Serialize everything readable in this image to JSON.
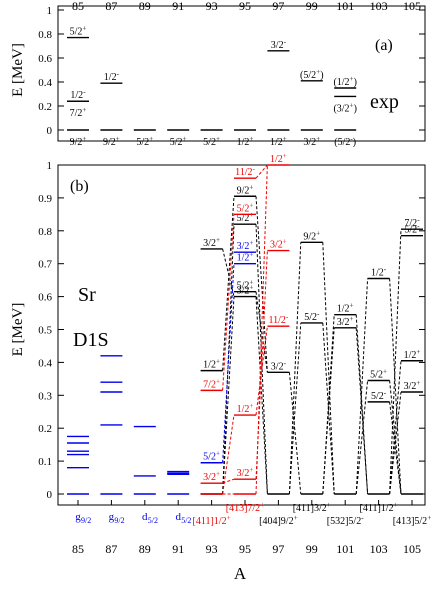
{
  "chart_data": {
    "type": "level-scheme",
    "xlabel": "A",
    "a_values": [
      85,
      87,
      89,
      91,
      93,
      95,
      97,
      99,
      101,
      103,
      105
    ],
    "ylabel": "E [MeV]",
    "panels": [
      {
        "id": "a",
        "label": "(a)",
        "title": "exp",
        "ylim": [
          0,
          1
        ],
        "yticks": [
          "0",
          "0.2",
          "0.4",
          "0.6",
          "0.8",
          "1"
        ],
        "top_axis_labels": [
          "85",
          "87",
          "89",
          "91",
          "93",
          "95",
          "97",
          "99",
          "101",
          "103",
          "105"
        ],
        "levels": [
          {
            "A": 85,
            "E": 0.0,
            "label": "9/2",
            "sup": "+",
            "label_pos": "below"
          },
          {
            "A": 85,
            "E": 0.24,
            "label": "7/2",
            "sup": "+",
            "label_pos": "below"
          },
          {
            "A": 85,
            "E": 0.24,
            "label": "1/2",
            "sup": "-",
            "label_pos": "above"
          },
          {
            "A": 85,
            "E": 0.77,
            "label": "5/2",
            "sup": "+",
            "label_pos": "above"
          },
          {
            "A": 87,
            "E": 0.0,
            "label": "9/2",
            "sup": "+",
            "label_pos": "below"
          },
          {
            "A": 87,
            "E": 0.39,
            "label": "1/2",
            "sup": "-",
            "label_pos": "above"
          },
          {
            "A": 89,
            "E": 0.0,
            "label": "5/2",
            "sup": "+",
            "label_pos": "below"
          },
          {
            "A": 91,
            "E": 0.0,
            "label": "5/2",
            "sup": "+",
            "label_pos": "below"
          },
          {
            "A": 93,
            "E": 0.0,
            "label": "5/2",
            "sup": "+",
            "label_pos": "below"
          },
          {
            "A": 95,
            "E": 0.0,
            "label": "1/2",
            "sup": "+",
            "label_pos": "below"
          },
          {
            "A": 97,
            "E": 0.0,
            "label": "1/2",
            "sup": "+",
            "label_pos": "below"
          },
          {
            "A": 97,
            "E": 0.66,
            "label": "3/2",
            "sup": "-",
            "label_pos": "above"
          },
          {
            "A": 99,
            "E": 0.0,
            "label": "3/2",
            "sup": "+",
            "label_pos": "below"
          },
          {
            "A": 99,
            "E": 0.41,
            "label": "(5/2",
            "sup": "+",
            "close": ")",
            "label_pos": "above"
          },
          {
            "A": 101,
            "E": 0.0,
            "label": "(5/2",
            "sup": "-",
            "close": ")",
            "label_pos": "below"
          },
          {
            "A": 101,
            "E": 0.28,
            "label": "(3/2",
            "sup": "+",
            "close": ")",
            "label_pos": "below"
          },
          {
            "A": 101,
            "E": 0.35,
            "label": "(1/2",
            "sup": "+",
            "close": ")",
            "label_pos": "above"
          }
        ]
      },
      {
        "id": "b",
        "label": "(b)",
        "nucleus": "Sr",
        "interaction": "D1S",
        "ylim": [
          0,
          1
        ],
        "yticks": [
          "0",
          "0.1",
          "0.2",
          "0.3",
          "0.4",
          "0.5",
          "0.6",
          "0.7",
          "0.8",
          "0.9",
          "1"
        ],
        "bottom_axis_labels": [
          "85",
          "87",
          "89",
          "91",
          "93",
          "95",
          "97",
          "99",
          "101",
          "103",
          "105"
        ],
        "colors": {
          "spherical": "#0000ee",
          "oblate": "#000000",
          "prolate": "#ee0000"
        },
        "spherical_groups": [
          {
            "A": 85,
            "orbital": "g",
            "sub": "9/2",
            "energies": [
              0.0,
              0.08,
              0.12,
              0.13,
              0.155,
              0.175
            ]
          },
          {
            "A": 87,
            "orbital": "g",
            "sub": "9/2",
            "energies": [
              0.0,
              0.21,
              0.31,
              0.34,
              0.42
            ]
          },
          {
            "A": 89,
            "orbital": "d",
            "sub": "5/2",
            "energies": [
              0.0,
              0.055,
              0.205
            ]
          },
          {
            "A": 91,
            "orbital": "d",
            "sub": "5/2",
            "energies": [
              0.0,
              0.06,
              0.063,
              0.068
            ]
          }
        ],
        "deformed_levels": [
          {
            "A": 93,
            "E": 0.0,
            "color": "black"
          },
          {
            "A": 93,
            "E": 0.0,
            "color": "red"
          },
          {
            "A": 93,
            "E": 0.033,
            "color": "red",
            "label": "3/2",
            "sup": "+"
          },
          {
            "A": 93,
            "E": 0.095,
            "color": "blue",
            "label": "5/2",
            "sup": "+"
          },
          {
            "A": 93,
            "E": 0.315,
            "color": "red",
            "label": "7/2",
            "sup": "+"
          },
          {
            "A": 93,
            "E": 0.375,
            "color": "black",
            "label": "1/2",
            "sup": "+"
          },
          {
            "A": 93,
            "E": 0.745,
            "color": "black",
            "label": "3/2",
            "sup": "+"
          },
          {
            "A": 95,
            "E": 0.0,
            "color": "red"
          },
          {
            "A": 95,
            "E": 0.045,
            "color": "red",
            "label": "3/2",
            "sup": "+"
          },
          {
            "A": 95,
            "E": 0.24,
            "color": "red",
            "label": "1/2",
            "sup": "+"
          },
          {
            "A": 95,
            "E": 0.6,
            "color": "black",
            "label": "3/2",
            "sup": "+"
          },
          {
            "A": 95,
            "E": 0.615,
            "color": "black",
            "label": "5/2",
            "sup": "+"
          },
          {
            "A": 95,
            "E": 0.7,
            "color": "blue",
            "label": "1/2",
            "sup": "+"
          },
          {
            "A": 95,
            "E": 0.735,
            "color": "blue",
            "label": "3/2",
            "sup": "+"
          },
          {
            "A": 95,
            "E": 0.82,
            "color": "black",
            "label": "5/2",
            "sup": "+"
          },
          {
            "A": 95,
            "E": 0.85,
            "color": "red",
            "label": "5/2",
            "sup": "+"
          },
          {
            "A": 95,
            "E": 0.905,
            "color": "black",
            "label": "9/2",
            "sup": "+"
          },
          {
            "A": 95,
            "E": 0.96,
            "color": "red",
            "label": "11/2",
            "sup": "-"
          },
          {
            "A": 97,
            "E": 0.0,
            "color": "black"
          },
          {
            "A": 97,
            "E": 0.37,
            "color": "black",
            "label": "3/2",
            "sup": "-"
          },
          {
            "A": 97,
            "E": 0.51,
            "color": "red",
            "label": "11/2",
            "sup": "-"
          },
          {
            "A": 97,
            "E": 0.74,
            "color": "red",
            "label": "3/2",
            "sup": "+"
          },
          {
            "A": 97,
            "E": 1.0,
            "color": "red",
            "label": "1/2",
            "sup": "+"
          },
          {
            "A": 99,
            "E": 0.0,
            "color": "black"
          },
          {
            "A": 99,
            "E": 0.52,
            "color": "black",
            "label": "5/2",
            "sup": "-"
          },
          {
            "A": 99,
            "E": 0.765,
            "color": "black",
            "label": "9/2",
            "sup": "+"
          },
          {
            "A": 101,
            "E": 0.0,
            "color": "black"
          },
          {
            "A": 101,
            "E": 0.505,
            "color": "black",
            "label": "3/2",
            "sup": "+"
          },
          {
            "A": 101,
            "E": 0.545,
            "color": "black",
            "label": "1/2",
            "sup": "+"
          },
          {
            "A": 103,
            "E": 0.0,
            "color": "black"
          },
          {
            "A": 103,
            "E": 0.28,
            "color": "black",
            "label": "5/2",
            "sup": "-"
          },
          {
            "A": 103,
            "E": 0.345,
            "color": "black",
            "label": "5/2",
            "sup": "+"
          },
          {
            "A": 103,
            "E": 0.655,
            "color": "black",
            "label": "1/2",
            "sup": "-"
          },
          {
            "A": 105,
            "E": 0.0,
            "color": "black"
          },
          {
            "A": 105,
            "E": 0.31,
            "color": "black",
            "label": "3/2",
            "sup": "+"
          },
          {
            "A": 105,
            "E": 0.405,
            "color": "black",
            "label": "1/2",
            "sup": "+"
          },
          {
            "A": 105,
            "E": 0.785,
            "color": "black",
            "label": "5/2",
            "sup": "-"
          },
          {
            "A": 105,
            "E": 0.805,
            "color": "black",
            "label": "7/2",
            "sup": "-"
          }
        ],
        "connections": [
          {
            "from": [
              93,
              0.0
            ],
            "to": [
              95,
              0.6
            ],
            "color": "black"
          },
          {
            "from": [
              93,
              0.745
            ],
            "to": [
              95,
              0.6
            ],
            "color": "black"
          },
          {
            "from": [
              93,
              0.0
            ],
            "to": [
              95,
              0.82
            ],
            "color": "black"
          },
          {
            "from": [
              93,
              0.375
            ],
            "to": [
              95,
              0.905
            ],
            "color": "black"
          },
          {
            "from": [
              93,
              0.0
            ],
            "to": [
              95,
              0.0
            ],
            "color": "red"
          },
          {
            "from": [
              93,
              0.315
            ],
            "to": [
              95,
              0.85
            ],
            "color": "red"
          },
          {
            "from": [
              93,
              0.033
            ],
            "to": [
              95,
              0.045
            ],
            "color": "red"
          },
          {
            "from": [
              93,
              0.0
            ],
            "to": [
              95,
              0.24
            ],
            "color": "red"
          },
          {
            "from": [
              93,
              0.095
            ],
            "to": [
              95,
              0.7
            ],
            "color": "blue"
          },
          {
            "from": [
              95,
              0.6
            ],
            "to": [
              97,
              0.0
            ],
            "color": "black"
          },
          {
            "from": [
              95,
              0.615
            ],
            "to": [
              97,
              0.37
            ],
            "color": "black"
          },
          {
            "from": [
              95,
              0.82
            ],
            "to": [
              97,
              0.0
            ],
            "color": "black"
          },
          {
            "from": [
              95,
              0.905
            ],
            "to": [
              97,
              0.37
            ],
            "color": "black"
          },
          {
            "from": [
              95,
              0.0
            ],
            "to": [
              97,
              1.0
            ],
            "color": "red"
          },
          {
            "from": [
              95,
              0.24
            ],
            "to": [
              97,
              0.51
            ],
            "color": "red"
          },
          {
            "from": [
              95,
              0.045
            ],
            "to": [
              97,
              0.74
            ],
            "color": "red"
          },
          {
            "from": [
              95,
              0.96
            ],
            "to": [
              97,
              1.0
            ],
            "color": "red"
          },
          {
            "from": [
              97,
              0.0
            ],
            "to": [
              99,
              0.52
            ],
            "color": "black"
          },
          {
            "from": [
              97,
              0.37
            ],
            "to": [
              99,
              0.0
            ],
            "color": "black"
          },
          {
            "from": [
              97,
              0.0
            ],
            "to": [
              99,
              0.765
            ],
            "color": "black"
          },
          {
            "from": [
              99,
              0.52
            ],
            "to": [
              101,
              0.0
            ],
            "color": "black"
          },
          {
            "from": [
              99,
              0.0
            ],
            "to": [
              101,
              0.505
            ],
            "color": "black"
          },
          {
            "from": [
              99,
              0.765
            ],
            "to": [
              101,
              0.0
            ],
            "color": "black"
          },
          {
            "from": [
              99,
              0.0
            ],
            "to": [
              101,
              0.545
            ],
            "color": "black"
          },
          {
            "from": [
              101,
              0.505
            ],
            "to": [
              103,
              0.0
            ],
            "color": "black"
          },
          {
            "from": [
              101,
              0.0
            ],
            "to": [
              103,
              0.345
            ],
            "color": "black"
          },
          {
            "from": [
              101,
              0.0
            ],
            "to": [
              103,
              0.655
            ],
            "color": "black"
          },
          {
            "from": [
              101,
              0.545
            ],
            "to": [
              103,
              0.0
            ],
            "color": "black"
          },
          {
            "from": [
              103,
              0.28
            ],
            "to": [
              105,
              0.0
            ],
            "color": "black"
          },
          {
            "from": [
              103,
              0.0
            ],
            "to": [
              105,
              0.31
            ],
            "color": "black"
          },
          {
            "from": [
              103,
              0.345
            ],
            "to": [
              105,
              0.0
            ],
            "color": "black"
          },
          {
            "from": [
              103,
              0.0
            ],
            "to": [
              105,
              0.405
            ],
            "color": "black"
          },
          {
            "from": [
              103,
              0.655
            ],
            "to": [
              105,
              0.0
            ],
            "color": "black"
          },
          {
            "from": [
              103,
              0.0
            ],
            "to": [
              105,
              0.805
            ],
            "color": "black"
          }
        ],
        "ground_state_labels": [
          {
            "A": 93,
            "text": "[411]1/2",
            "sup": "+",
            "color": "red",
            "row": 1
          },
          {
            "A": 95,
            "text": "[413]7/2",
            "sup": "+",
            "color": "red",
            "row": 0
          },
          {
            "A": 97,
            "text": "[404]9/2",
            "sup": "+",
            "color": "black",
            "row": 1
          },
          {
            "A": 99,
            "text": "[411]3/2",
            "sup": "+",
            "color": "black",
            "row": 0
          },
          {
            "A": 101,
            "text": "[532]5/2",
            "sup": "-",
            "color": "black",
            "row": 1
          },
          {
            "A": 103,
            "text": "[411]1/2",
            "sup": "+",
            "color": "black",
            "row": 0
          },
          {
            "A": 105,
            "text": "[413]5/2",
            "sup": "+",
            "color": "black",
            "row": 1
          }
        ]
      }
    ]
  }
}
